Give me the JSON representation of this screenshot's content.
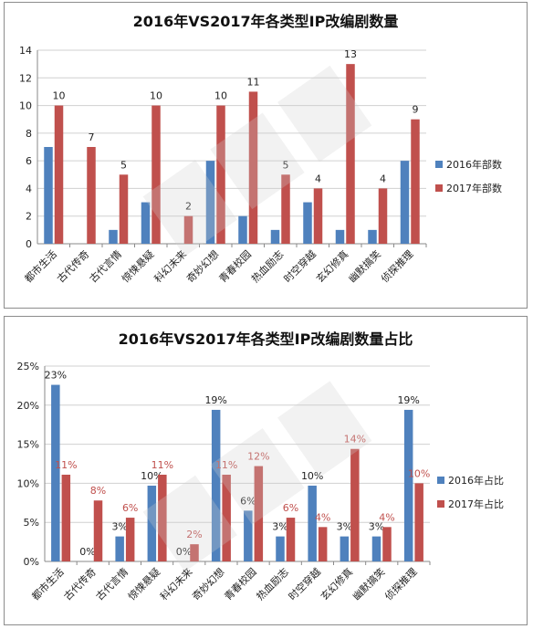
{
  "chart_data": [
    {
      "type": "bar",
      "title": "2016年VS2017年各类型IP改编剧数量",
      "categories": [
        "都市生活",
        "古代传奇",
        "古代言情",
        "惊悚悬疑",
        "科幻未来",
        "奇妙幻想",
        "青春校园",
        "热血励志",
        "时空穿越",
        "玄幻修真",
        "幽默搞笑",
        "侦探推理"
      ],
      "series": [
        {
          "name": "2016年部数",
          "values": [
            7,
            0,
            1,
            3,
            0,
            6,
            2,
            1,
            3,
            1,
            1,
            6
          ],
          "color": "#4f81bd",
          "labels": [
            "",
            "",
            "",
            "",
            "",
            "",
            "",
            "",
            "",
            "",
            "",
            ""
          ]
        },
        {
          "name": "2017年部数",
          "values": [
            10,
            7,
            5,
            10,
            2,
            10,
            11,
            5,
            4,
            13,
            4,
            9
          ],
          "color": "#c0504d",
          "labels": [
            "10",
            "7",
            "5",
            "10",
            "2",
            "10",
            "11",
            "5",
            "4",
            "13",
            "4",
            "9"
          ]
        }
      ],
      "yticks": [
        "0",
        "2",
        "4",
        "6",
        "8",
        "10",
        "12",
        "14"
      ],
      "ylim": [
        0,
        14
      ],
      "grid": true,
      "legend": "right"
    },
    {
      "type": "bar",
      "title": "2016年VS2017年各类型IP改编剧数量占比",
      "categories": [
        "都市生活",
        "古代传奇",
        "古代言情",
        "惊悚悬疑",
        "科幻未来",
        "奇妙幻想",
        "青春校园",
        "热血励志",
        "时空穿越",
        "玄幻修真",
        "幽默搞笑",
        "侦探推理"
      ],
      "series": [
        {
          "name": "2016年占比",
          "values": [
            22.6,
            0,
            3.2,
            9.7,
            0,
            19.4,
            6.5,
            3.2,
            9.7,
            3.2,
            3.2,
            19.4
          ],
          "color": "#4f81bd",
          "labels": [
            "23%",
            "0%",
            "3%",
            "10%",
            "0%",
            "19%",
            "6%",
            "3%",
            "10%",
            "3%",
            "3%",
            "19%"
          ],
          "label_color": "#222222"
        },
        {
          "name": "2017年占比",
          "values": [
            11.1,
            7.8,
            5.6,
            11.1,
            2.2,
            11.1,
            12.2,
            5.6,
            4.4,
            14.4,
            4.4,
            10.0
          ],
          "color": "#c0504d",
          "labels": [
            "11%",
            "8%",
            "6%",
            "11%",
            "2%",
            "11%",
            "12%",
            "6%",
            "4%",
            "14%",
            "4%",
            "10%"
          ],
          "label_color": "#c0504d"
        }
      ],
      "yticks": [
        "0%",
        "5%",
        "10%",
        "15%",
        "20%",
        "25%"
      ],
      "ylim": [
        0,
        25
      ],
      "grid": true,
      "legend": "right"
    }
  ]
}
